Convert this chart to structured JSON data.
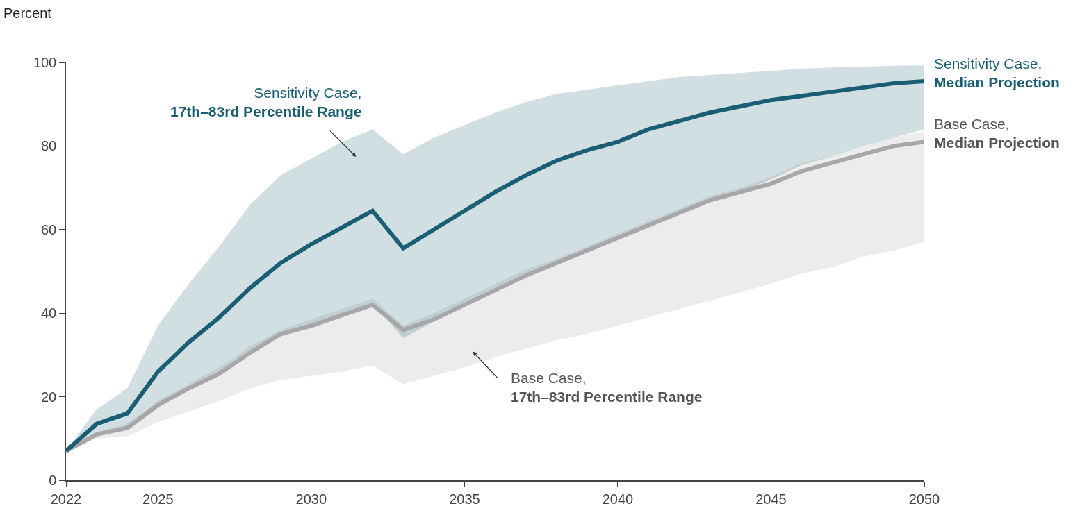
{
  "chart_data": {
    "type": "line",
    "ylabel": "Percent",
    "x": [
      2022,
      2023,
      2024,
      2025,
      2026,
      2027,
      2028,
      2029,
      2030,
      2031,
      2032,
      2033,
      2034,
      2035,
      2036,
      2037,
      2038,
      2039,
      2040,
      2041,
      2042,
      2043,
      2044,
      2045,
      2046,
      2047,
      2048,
      2049,
      2050
    ],
    "series": [
      {
        "name": "Base Case,\nMedian Projection",
        "color": "#a7a7a9",
        "values": [
          7,
          11,
          12.5,
          18,
          22,
          25.5,
          30.5,
          35,
          37,
          39.5,
          42,
          36,
          38.5,
          42,
          45.5,
          49,
          52,
          55,
          58,
          61,
          64,
          67,
          69,
          71,
          74,
          76,
          78,
          80,
          81
        ],
        "lower": [
          7,
          10,
          10.5,
          14,
          16.5,
          19,
          22,
          24,
          25,
          26,
          27.5,
          23,
          25,
          27,
          29.5,
          31.5,
          33.5,
          35,
          37,
          39,
          41,
          43,
          45,
          47,
          49.5,
          51,
          53.5,
          55,
          57
        ],
        "upper": [
          7,
          11.5,
          13.5,
          19,
          23,
          27,
          32,
          36,
          38.5,
          41,
          43.5,
          37,
          40,
          43.5,
          47,
          50.5,
          53,
          56,
          59,
          62,
          65,
          68,
          70,
          72.5,
          76,
          77.5,
          80,
          82,
          83.5
        ]
      },
      {
        "name": "Sensitivity Case,\nMedian Projection",
        "color": "#1a5e73",
        "values": [
          7,
          13.5,
          16,
          26,
          33,
          39,
          46,
          52,
          56.5,
          60.5,
          64.5,
          55.5,
          60,
          64.5,
          69,
          73,
          76.5,
          79,
          81,
          84,
          86,
          88,
          89.5,
          91,
          92,
          93,
          94,
          95,
          95.5
        ],
        "lower": [
          7,
          11,
          12.5,
          18,
          22,
          26,
          31,
          35,
          37,
          39.5,
          42.5,
          34,
          38,
          42,
          46,
          49.5,
          52,
          55,
          58,
          61,
          64,
          66.5,
          69,
          72,
          75.5,
          77.5,
          80,
          82,
          84
        ],
        "upper": [
          7,
          17,
          22,
          37,
          47,
          56,
          66,
          73,
          77,
          81,
          84,
          78,
          82,
          85,
          88,
          90.5,
          92.5,
          93.5,
          94.5,
          95.5,
          96.5,
          97,
          97.5,
          98,
          98.5,
          98.8,
          99,
          99.2,
          99.3
        ]
      }
    ],
    "annotations": [
      "Base Case,\n17th–83rd Percentile Range",
      "Sensitivity Case,\n17th–83rd Percentile Range"
    ],
    "xlim": [
      2022,
      2050
    ],
    "xticks": [
      2022,
      2025,
      2030,
      2035,
      2040,
      2045,
      2050
    ],
    "ylim": [
      0,
      100
    ],
    "yticks": [
      0,
      20,
      40,
      60,
      80,
      100
    ],
    "legend": false,
    "marker": "none",
    "line_style": "solid"
  }
}
